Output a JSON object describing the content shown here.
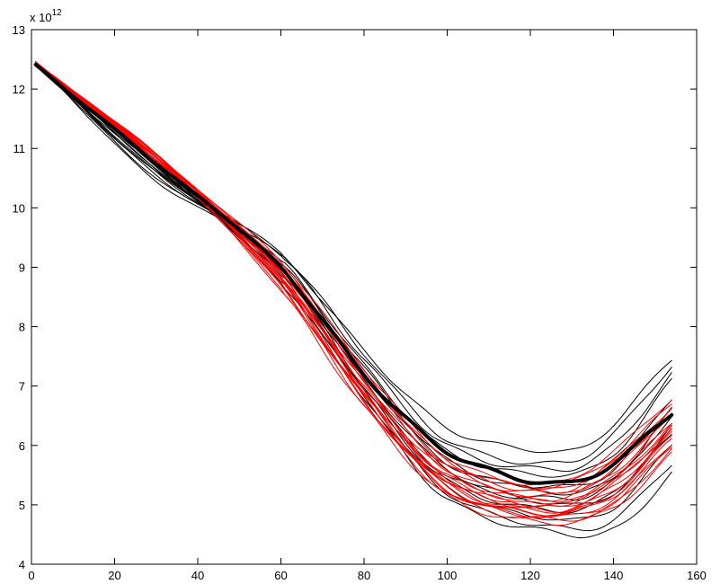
{
  "chart_data": {
    "type": "line",
    "title": "",
    "xlabel": "",
    "ylabel": "",
    "xlim": [
      0,
      160
    ],
    "ylim": [
      4,
      13
    ],
    "y_exponent_label": {
      "base": "x 10",
      "exponent": "12"
    },
    "x_ticks": [
      "0",
      "20",
      "40",
      "60",
      "80",
      "100",
      "120",
      "140",
      "160"
    ],
    "y_ticks": [
      "4",
      "5",
      "6",
      "7",
      "8",
      "9",
      "10",
      "11",
      "12",
      "13"
    ],
    "grid": false,
    "legend": "none",
    "x_end": 154,
    "colors": {
      "black": "#000000",
      "red": "#ff0000"
    },
    "series": [
      {
        "color": "black",
        "width": 1,
        "keypoints": [
          [
            1,
            12.45
          ],
          [
            30,
            10.45
          ],
          [
            60,
            9.2
          ],
          [
            80,
            7.6
          ],
          [
            100,
            6.3
          ],
          [
            125,
            5.9
          ],
          [
            135,
            6.05
          ],
          [
            154,
            7.45
          ]
        ]
      },
      {
        "color": "black",
        "width": 1,
        "keypoints": [
          [
            1,
            12.45
          ],
          [
            30,
            10.5
          ],
          [
            60,
            9.25
          ],
          [
            80,
            7.55
          ],
          [
            100,
            6.1
          ],
          [
            128,
            5.7
          ],
          [
            140,
            6.2
          ],
          [
            154,
            7.35
          ]
        ]
      },
      {
        "color": "black",
        "width": 1,
        "keypoints": [
          [
            1,
            12.4
          ],
          [
            30,
            10.6
          ],
          [
            60,
            9.2
          ],
          [
            80,
            7.45
          ],
          [
            100,
            6.0
          ],
          [
            128,
            5.6
          ],
          [
            140,
            6.0
          ],
          [
            154,
            7.2
          ]
        ]
      },
      {
        "color": "black",
        "width": 1,
        "keypoints": [
          [
            1,
            12.45
          ],
          [
            30,
            10.55
          ],
          [
            60,
            9.1
          ],
          [
            80,
            7.35
          ],
          [
            100,
            5.9
          ],
          [
            128,
            5.5
          ],
          [
            140,
            5.85
          ],
          [
            154,
            7.1
          ]
        ]
      },
      {
        "color": "black",
        "width": 1,
        "keypoints": [
          [
            1,
            12.45
          ],
          [
            30,
            10.7
          ],
          [
            60,
            9.0
          ],
          [
            80,
            7.2
          ],
          [
            100,
            5.7
          ],
          [
            128,
            5.3
          ],
          [
            140,
            5.6
          ],
          [
            154,
            6.8
          ]
        ]
      },
      {
        "color": "black",
        "width": 1,
        "keypoints": [
          [
            1,
            12.45
          ],
          [
            30,
            10.65
          ],
          [
            60,
            8.95
          ],
          [
            80,
            7.0
          ],
          [
            100,
            5.5
          ],
          [
            128,
            5.1
          ],
          [
            140,
            5.4
          ],
          [
            154,
            6.5
          ]
        ]
      },
      {
        "color": "black",
        "width": 1,
        "keypoints": [
          [
            1,
            12.4
          ],
          [
            30,
            10.7
          ],
          [
            60,
            8.9
          ],
          [
            80,
            6.95
          ],
          [
            100,
            5.4
          ],
          [
            128,
            4.9
          ],
          [
            140,
            5.2
          ],
          [
            154,
            6.3
          ]
        ]
      },
      {
        "color": "black",
        "width": 1,
        "keypoints": [
          [
            1,
            12.45
          ],
          [
            30,
            10.7
          ],
          [
            60,
            8.85
          ],
          [
            80,
            6.9
          ],
          [
            100,
            5.3
          ],
          [
            128,
            4.75
          ],
          [
            140,
            4.95
          ],
          [
            154,
            6.0
          ]
        ]
      },
      {
        "color": "black",
        "width": 1,
        "keypoints": [
          [
            1,
            12.45
          ],
          [
            30,
            10.75
          ],
          [
            60,
            8.8
          ],
          [
            80,
            6.85
          ],
          [
            100,
            5.2
          ],
          [
            128,
            4.6
          ],
          [
            140,
            4.75
          ],
          [
            154,
            5.7
          ]
        ]
      },
      {
        "color": "black",
        "width": 1,
        "keypoints": [
          [
            1,
            12.4
          ],
          [
            30,
            10.75
          ],
          [
            60,
            8.75
          ],
          [
            80,
            6.8
          ],
          [
            100,
            5.1
          ],
          [
            130,
            4.5
          ],
          [
            142,
            4.65
          ],
          [
            154,
            5.55
          ]
        ]
      },
      {
        "color": "black",
        "width": 1,
        "keypoints": [
          [
            1,
            12.45
          ],
          [
            30,
            10.6
          ],
          [
            60,
            9.05
          ],
          [
            80,
            7.3
          ],
          [
            100,
            5.75
          ],
          [
            128,
            5.2
          ],
          [
            140,
            5.45
          ],
          [
            154,
            6.6
          ]
        ]
      },
      {
        "color": "black",
        "width": 1,
        "keypoints": [
          [
            1,
            12.4
          ],
          [
            30,
            10.65
          ],
          [
            60,
            8.95
          ],
          [
            80,
            7.1
          ],
          [
            100,
            5.6
          ],
          [
            128,
            5.0
          ],
          [
            140,
            5.2
          ],
          [
            154,
            6.2
          ]
        ]
      },
      {
        "color": "red",
        "width": 1,
        "keypoints": [
          [
            1,
            12.4
          ],
          [
            30,
            10.85
          ],
          [
            60,
            9.1
          ],
          [
            80,
            7.3
          ],
          [
            100,
            5.8
          ],
          [
            125,
            5.35
          ],
          [
            140,
            5.9
          ],
          [
            154,
            6.8
          ]
        ]
      },
      {
        "color": "red",
        "width": 1,
        "keypoints": [
          [
            1,
            12.4
          ],
          [
            30,
            10.8
          ],
          [
            60,
            9.0
          ],
          [
            80,
            7.15
          ],
          [
            100,
            5.65
          ],
          [
            125,
            5.2
          ],
          [
            140,
            5.7
          ],
          [
            154,
            6.6
          ]
        ]
      },
      {
        "color": "red",
        "width": 1,
        "keypoints": [
          [
            1,
            12.45
          ],
          [
            30,
            10.85
          ],
          [
            60,
            8.95
          ],
          [
            80,
            7.05
          ],
          [
            100,
            5.55
          ],
          [
            125,
            5.1
          ],
          [
            140,
            5.55
          ],
          [
            154,
            6.5
          ]
        ]
      },
      {
        "color": "red",
        "width": 1,
        "keypoints": [
          [
            1,
            12.4
          ],
          [
            30,
            10.9
          ],
          [
            60,
            8.9
          ],
          [
            80,
            6.95
          ],
          [
            100,
            5.45
          ],
          [
            125,
            5.0
          ],
          [
            140,
            5.45
          ],
          [
            154,
            6.4
          ]
        ]
      },
      {
        "color": "red",
        "width": 1,
        "keypoints": [
          [
            1,
            12.4
          ],
          [
            30,
            10.8
          ],
          [
            60,
            8.85
          ],
          [
            80,
            6.9
          ],
          [
            100,
            5.4
          ],
          [
            125,
            4.95
          ],
          [
            140,
            5.35
          ],
          [
            154,
            6.3
          ]
        ]
      },
      {
        "color": "red",
        "width": 1,
        "keypoints": [
          [
            1,
            12.45
          ],
          [
            30,
            10.85
          ],
          [
            60,
            8.8
          ],
          [
            80,
            6.85
          ],
          [
            100,
            5.35
          ],
          [
            125,
            4.9
          ],
          [
            140,
            5.3
          ],
          [
            154,
            6.25
          ]
        ]
      },
      {
        "color": "red",
        "width": 1,
        "keypoints": [
          [
            1,
            12.4
          ],
          [
            30,
            10.9
          ],
          [
            60,
            8.75
          ],
          [
            80,
            6.8
          ],
          [
            100,
            5.3
          ],
          [
            125,
            4.85
          ],
          [
            140,
            5.2
          ],
          [
            154,
            6.15
          ]
        ]
      },
      {
        "color": "red",
        "width": 1,
        "keypoints": [
          [
            1,
            12.4
          ],
          [
            30,
            10.8
          ],
          [
            60,
            8.7
          ],
          [
            80,
            6.75
          ],
          [
            100,
            5.25
          ],
          [
            125,
            4.8
          ],
          [
            140,
            5.1
          ],
          [
            154,
            6.05
          ]
        ]
      },
      {
        "color": "red",
        "width": 1,
        "keypoints": [
          [
            1,
            12.45
          ],
          [
            30,
            10.85
          ],
          [
            60,
            8.65
          ],
          [
            80,
            6.7
          ],
          [
            100,
            5.2
          ],
          [
            125,
            4.75
          ],
          [
            140,
            5.0
          ],
          [
            154,
            5.95
          ]
        ]
      },
      {
        "color": "red",
        "width": 1,
        "keypoints": [
          [
            1,
            12.4
          ],
          [
            30,
            10.9
          ],
          [
            60,
            8.6
          ],
          [
            80,
            6.65
          ],
          [
            100,
            5.15
          ],
          [
            125,
            4.7
          ],
          [
            140,
            4.95
          ],
          [
            154,
            5.85
          ]
        ]
      },
      {
        "color": "red",
        "width": 1,
        "keypoints": [
          [
            1,
            12.4
          ],
          [
            30,
            10.85
          ],
          [
            60,
            9.05
          ],
          [
            80,
            7.25
          ],
          [
            100,
            5.75
          ],
          [
            125,
            5.3
          ],
          [
            140,
            5.8
          ],
          [
            154,
            6.7
          ]
        ]
      },
      {
        "color": "red",
        "width": 1,
        "keypoints": [
          [
            1,
            12.45
          ],
          [
            30,
            10.8
          ],
          [
            60,
            8.95
          ],
          [
            80,
            7.1
          ],
          [
            100,
            5.6
          ],
          [
            125,
            5.15
          ],
          [
            140,
            5.6
          ],
          [
            154,
            6.55
          ]
        ]
      },
      {
        "color": "red",
        "width": 1,
        "keypoints": [
          [
            1,
            12.4
          ],
          [
            30,
            10.9
          ],
          [
            60,
            8.85
          ],
          [
            80,
            6.95
          ],
          [
            100,
            5.5
          ],
          [
            125,
            5.05
          ],
          [
            140,
            5.45
          ],
          [
            154,
            6.35
          ]
        ]
      },
      {
        "color": "red",
        "width": 1,
        "keypoints": [
          [
            1,
            12.4
          ],
          [
            30,
            10.85
          ],
          [
            60,
            8.75
          ],
          [
            80,
            6.85
          ],
          [
            100,
            5.35
          ],
          [
            125,
            4.9
          ],
          [
            140,
            5.25
          ],
          [
            154,
            6.2
          ]
        ]
      },
      {
        "color": "red",
        "width": 1,
        "keypoints": [
          [
            1,
            12.45
          ],
          [
            30,
            10.8
          ],
          [
            60,
            8.7
          ],
          [
            80,
            6.75
          ],
          [
            100,
            5.25
          ],
          [
            125,
            4.8
          ],
          [
            140,
            5.05
          ],
          [
            154,
            6.0
          ]
        ]
      },
      {
        "color": "red",
        "width": 1,
        "keypoints": [
          [
            1,
            12.4
          ],
          [
            30,
            10.85
          ],
          [
            60,
            9.0
          ],
          [
            80,
            7.2
          ],
          [
            100,
            5.7
          ],
          [
            125,
            5.25
          ],
          [
            140,
            5.75
          ],
          [
            154,
            6.65
          ]
        ]
      },
      {
        "color": "red",
        "width": 1,
        "keypoints": [
          [
            1,
            12.4
          ],
          [
            30,
            10.9
          ],
          [
            60,
            8.9
          ],
          [
            80,
            7.0
          ],
          [
            100,
            5.45
          ],
          [
            125,
            5.0
          ],
          [
            140,
            5.4
          ],
          [
            154,
            6.3
          ]
        ]
      },
      {
        "color": "red",
        "width": 1,
        "keypoints": [
          [
            1,
            12.45
          ],
          [
            30,
            10.85
          ],
          [
            60,
            8.8
          ],
          [
            80,
            6.8
          ],
          [
            100,
            5.3
          ],
          [
            125,
            4.85
          ],
          [
            140,
            5.15
          ],
          [
            154,
            6.1
          ]
        ]
      },
      {
        "color": "black",
        "width": 4,
        "keypoints": [
          [
            1,
            12.4
          ],
          [
            30,
            10.75
          ],
          [
            60,
            9.0
          ],
          [
            80,
            7.2
          ],
          [
            100,
            5.9
          ],
          [
            127,
            5.35
          ],
          [
            140,
            5.7
          ],
          [
            154,
            6.55
          ]
        ]
      }
    ]
  }
}
